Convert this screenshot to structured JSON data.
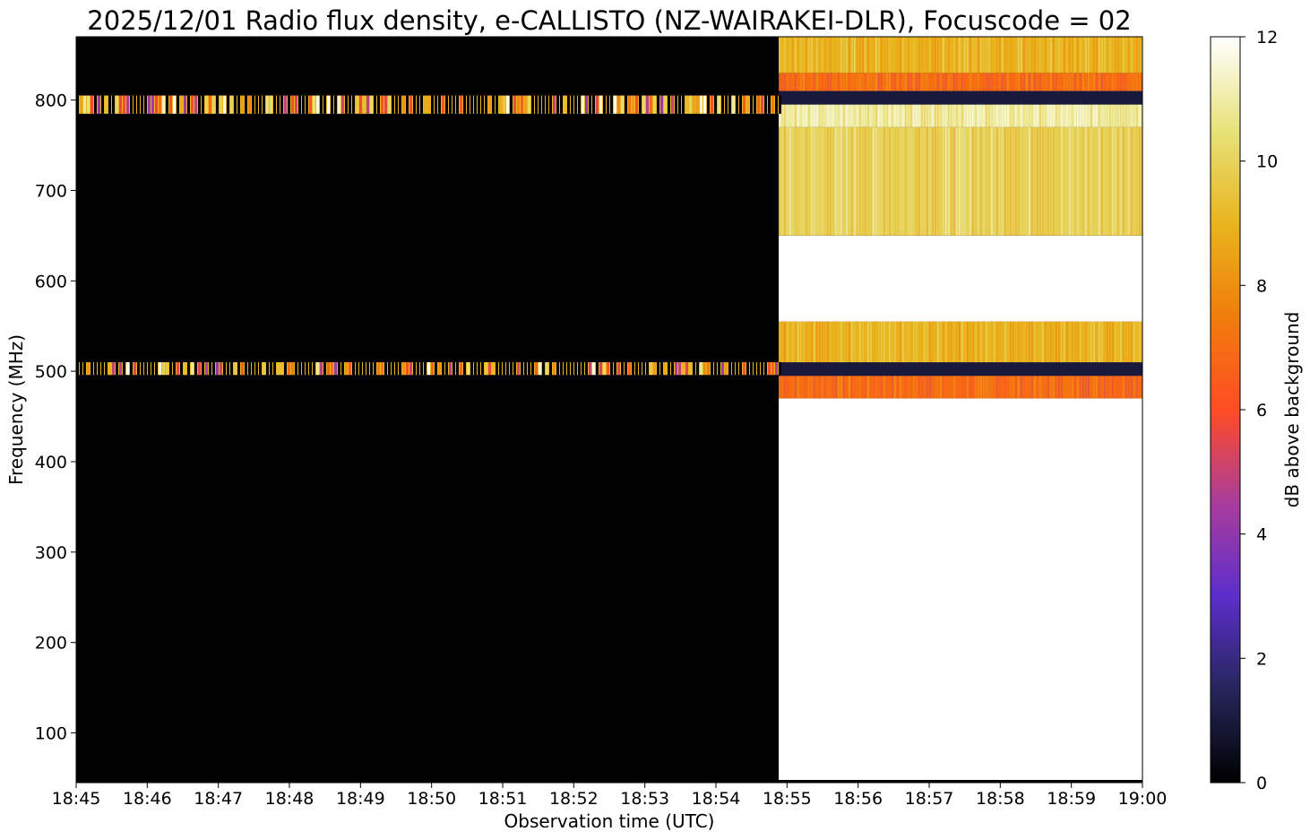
{
  "chart_data": {
    "type": "heatmap",
    "title": "2025/12/01 Radio flux density, e-CALLISTO (NZ-WAIRAKEI-DLR), Focuscode = 02",
    "xlabel": "Observation time (UTC)",
    "ylabel": "Frequency (MHz)",
    "colorbar_label": "dB above background",
    "colormap": "CMRmap",
    "x_ticks": [
      "18:45",
      "18:46",
      "18:47",
      "18:48",
      "18:49",
      "18:50",
      "18:51",
      "18:52",
      "18:53",
      "18:54",
      "18:55",
      "18:56",
      "18:57",
      "18:58",
      "18:59",
      "19:00"
    ],
    "xlim": [
      "18:45",
      "19:00"
    ],
    "y_ticks": [
      100,
      200,
      300,
      400,
      500,
      600,
      700,
      800
    ],
    "ylim": [
      45,
      870
    ],
    "colorbar_ticks": [
      0,
      2,
      4,
      6,
      8,
      10,
      12
    ],
    "clim": [
      0,
      12
    ],
    "background_db": 0,
    "burst_onset": "18:54:53",
    "features": [
      {
        "name": "interference",
        "start": "18:45:00",
        "end": "18:54:53",
        "f_low": 785,
        "f_high": 805,
        "db": 9
      },
      {
        "name": "interference",
        "start": "18:45:00",
        "end": "18:54:53",
        "f_low": 496,
        "f_high": 510,
        "db": 9
      },
      {
        "name": "broadband",
        "start": "18:54:53",
        "end": "19:00:00",
        "f_low": 48,
        "f_high": 470,
        "db": 12
      },
      {
        "name": "band",
        "start": "18:54:53",
        "end": "19:00:00",
        "f_low": 470,
        "f_high": 495,
        "db": 7
      },
      {
        "name": "band",
        "start": "18:54:53",
        "end": "19:00:00",
        "f_low": 495,
        "f_high": 510,
        "db": 1
      },
      {
        "name": "band",
        "start": "18:54:53",
        "end": "19:00:00",
        "f_low": 510,
        "f_high": 555,
        "db": 9
      },
      {
        "name": "band",
        "start": "18:54:53",
        "end": "19:00:00",
        "f_low": 555,
        "f_high": 650,
        "db": 12
      },
      {
        "name": "band",
        "start": "18:54:53",
        "end": "19:00:00",
        "f_low": 650,
        "f_high": 770,
        "db": 10
      },
      {
        "name": "band",
        "start": "18:54:53",
        "end": "19:00:00",
        "f_low": 770,
        "f_high": 795,
        "db": 11
      },
      {
        "name": "band",
        "start": "18:54:53",
        "end": "19:00:00",
        "f_low": 795,
        "f_high": 810,
        "db": 1
      },
      {
        "name": "band",
        "start": "18:54:53",
        "end": "19:00:00",
        "f_low": 810,
        "f_high": 830,
        "db": 7
      },
      {
        "name": "band",
        "start": "18:54:53",
        "end": "19:00:00",
        "f_low": 830,
        "f_high": 870,
        "db": 9
      }
    ]
  }
}
